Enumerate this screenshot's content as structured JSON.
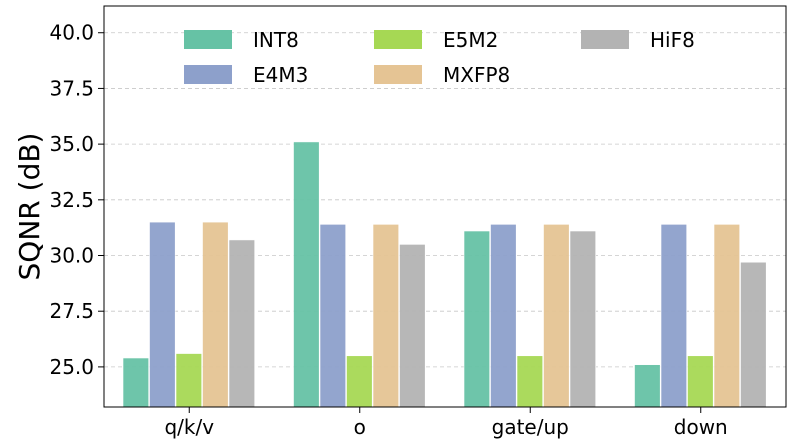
{
  "chart_data": {
    "type": "bar",
    "title": "",
    "xlabel": "",
    "ylabel": "SQNR (dB)",
    "ylim": [
      23.2,
      41.2
    ],
    "yticks": [
      "25.0",
      "27.5",
      "30.0",
      "32.5",
      "35.0",
      "37.5",
      "40.0"
    ],
    "ytick_values": [
      25.0,
      27.5,
      30.0,
      32.5,
      35.0,
      37.5,
      40.0
    ],
    "grid": "horizontal dashed",
    "legend_position": "top",
    "categories": [
      "q/k/v",
      "o",
      "gate/up",
      "down"
    ],
    "series": [
      {
        "name": "INT8",
        "color": "#66c2a5",
        "values": [
          25.4,
          35.1,
          31.1,
          25.1
        ]
      },
      {
        "name": "E4M3",
        "color": "#8da0cb",
        "values": [
          31.5,
          31.4,
          31.4,
          31.4
        ]
      },
      {
        "name": "E5M2",
        "color": "#a6d854",
        "values": [
          25.6,
          25.5,
          25.5,
          25.5
        ]
      },
      {
        "name": "MXFP8",
        "color": "#e5c494",
        "values": [
          31.5,
          31.4,
          31.4,
          31.4
        ]
      },
      {
        "name": "HiF8",
        "color": "#b3b3b3",
        "values": [
          30.7,
          30.5,
          31.1,
          29.7
        ]
      }
    ],
    "legend_rows": [
      [
        "INT8",
        "E5M2",
        "HiF8"
      ],
      [
        "E4M3",
        "MXFP8"
      ]
    ]
  }
}
